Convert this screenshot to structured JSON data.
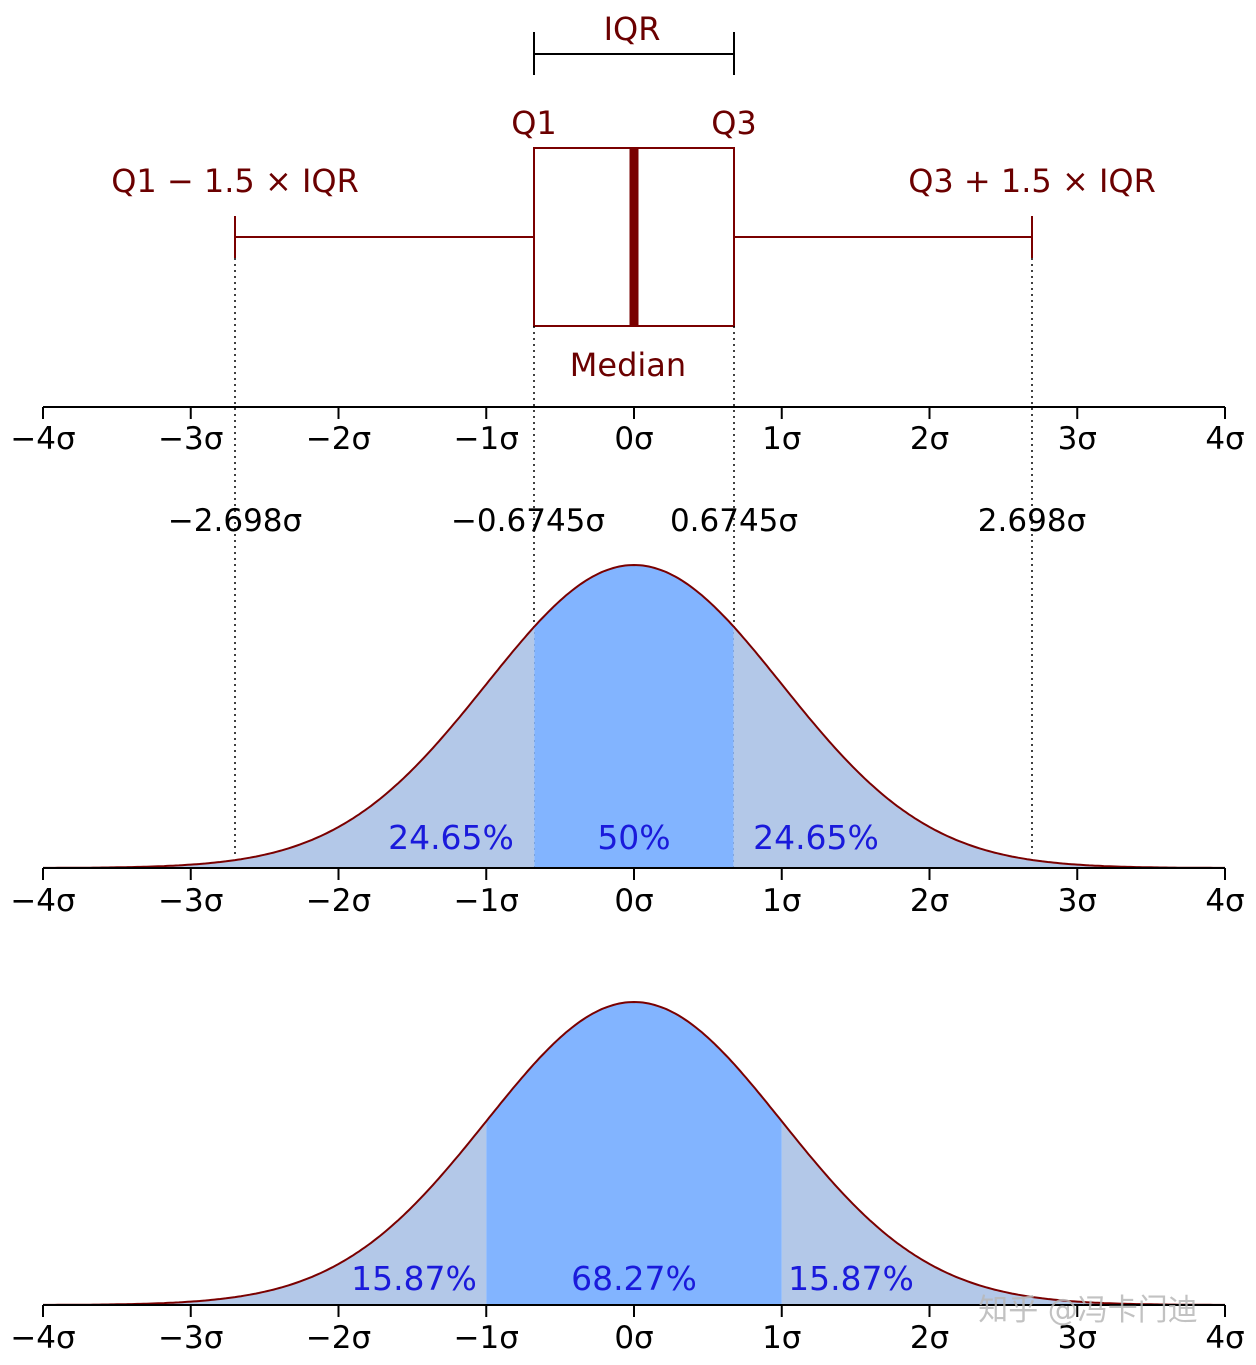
{
  "colors": {
    "box": "#7a0000",
    "curve": "#7a0000",
    "fill_center": "#82b4ff",
    "fill_tail": "#b3c8e8",
    "pct_text": "#1a1adb",
    "axis": "#000000"
  },
  "tick_labels": [
    "−4σ",
    "−3σ",
    "−2σ",
    "−1σ",
    "0σ",
    "1σ",
    "2σ",
    "3σ",
    "4σ"
  ],
  "boxplot": {
    "iqr_label": "IQR",
    "q1_label": "Q1",
    "q3_label": "Q3",
    "median_label": "Median",
    "lower_whisker_label": "Q1 − 1.5 × IQR",
    "upper_whisker_label": "Q3 + 1.5 × IQR",
    "q1": -0.6745,
    "q3": 0.6745,
    "median": 0,
    "lower_whisker": -2.698,
    "upper_whisker": 2.698
  },
  "quartile_values": [
    {
      "value": -2.698,
      "label": "−2.698σ"
    },
    {
      "value": -0.6745,
      "label": "−0.6745σ"
    },
    {
      "value": 0.6745,
      "label": "0.6745σ"
    },
    {
      "value": 2.698,
      "label": "2.698σ"
    }
  ],
  "panel_iqr": {
    "bounds": [
      -0.6745,
      0.6745
    ],
    "left_pct": "24.65%",
    "center_pct": "50%",
    "right_pct": "24.65%"
  },
  "panel_sigma": {
    "bounds": [
      -1,
      1
    ],
    "left_pct": "15.87%",
    "center_pct": "68.27%",
    "right_pct": "15.87%"
  },
  "watermark": "知乎 @冯卡门迪",
  "chart_data": {
    "type": "area",
    "distribution": "normal",
    "mean": 0,
    "sd": 1,
    "xlim": [
      -4,
      4
    ],
    "x_ticks": [
      -4,
      -3,
      -2,
      -1,
      0,
      1,
      2,
      3,
      4
    ]
  }
}
